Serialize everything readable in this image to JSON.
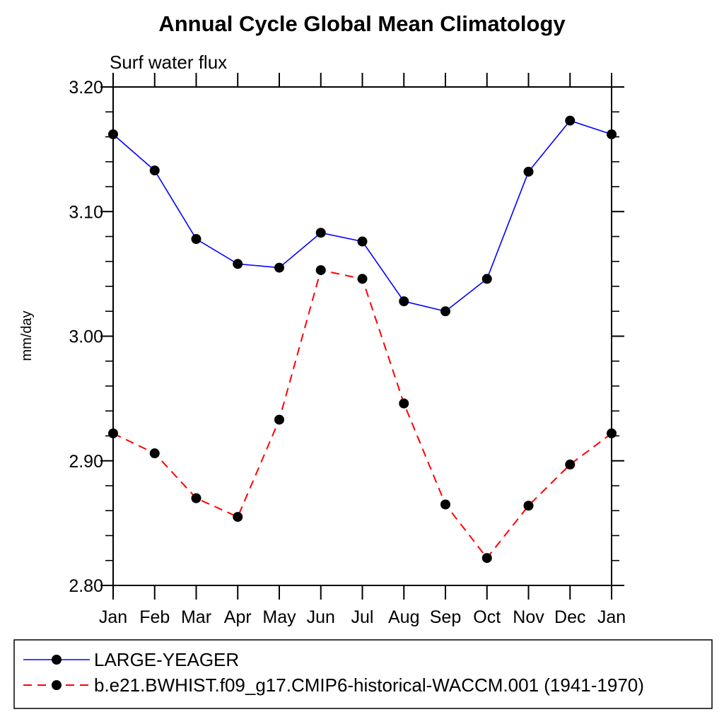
{
  "title": "Annual Cycle Global Mean Climatology",
  "subtitle": "Surf water flux",
  "ylabel": "mm/day",
  "chart_data": {
    "type": "line",
    "categories": [
      "Jan",
      "Feb",
      "Mar",
      "Apr",
      "May",
      "Jun",
      "Jul",
      "Aug",
      "Sep",
      "Oct",
      "Nov",
      "Dec",
      "Jan"
    ],
    "series": [
      {
        "name": "LARGE-YEAGER",
        "color": "#0000ff",
        "line_style": "solid",
        "marker": "circle",
        "marker_color": "#000000",
        "values": [
          3.162,
          3.133,
          3.078,
          3.058,
          3.055,
          3.083,
          3.076,
          3.028,
          3.02,
          3.046,
          3.132,
          3.173,
          3.162
        ]
      },
      {
        "name": "b.e21.BWHIST.f09_g17.CMIP6-historical-WACCM.001 (1941-1970)",
        "color": "#ff0000",
        "line_style": "dashed",
        "marker": "circle",
        "marker_color": "#000000",
        "values": [
          2.922,
          2.906,
          2.87,
          2.855,
          2.933,
          3.053,
          3.046,
          2.946,
          2.865,
          2.822,
          2.864,
          2.897,
          2.922
        ]
      }
    ],
    "ylim": [
      2.8,
      3.2
    ],
    "ytick_major": [
      2.8,
      2.9,
      3.0,
      3.1,
      3.2
    ],
    "ytick_major_labels": [
      "2.80",
      "2.90",
      "3.00",
      "3.10",
      "3.20"
    ],
    "ytick_minor_step": 0.02,
    "xlabel": "",
    "grid": false,
    "legend_position": "bottom",
    "frame_color": "#000000",
    "background_color": "#ffffff"
  }
}
